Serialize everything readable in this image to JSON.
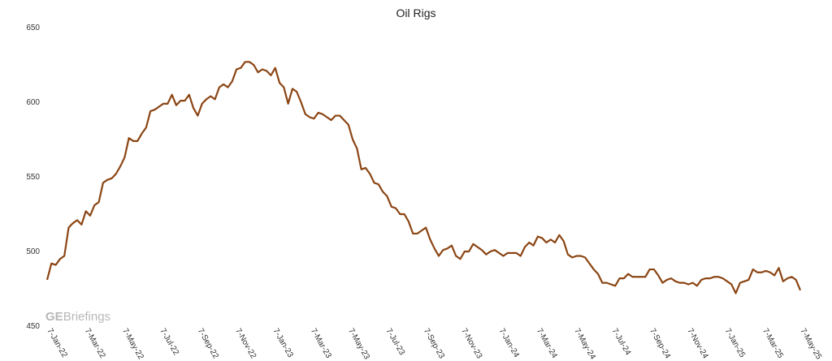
{
  "chart_data": {
    "type": "line",
    "title": "Oil Rigs",
    "xlabel": "",
    "ylabel": "",
    "ylim": [
      450,
      650
    ],
    "yticks": [
      450,
      500,
      550,
      600,
      650
    ],
    "grid": false,
    "legend": "none",
    "x_tick_labels": [
      "7-Jan-22",
      "7-Mar-22",
      "7-May-22",
      "7-Jul-22",
      "7-Sep-22",
      "7-Nov-22",
      "7-Jan-23",
      "7-Mar-23",
      "7-May-23",
      "7-Jul-23",
      "7-Sep-23",
      "7-Nov-23",
      "7-Jan-24",
      "7-Mar-24",
      "7-May-24",
      "7-Jul-24",
      "7-Sep-24",
      "7-Nov-24",
      "7-Jan-25",
      "7-Mar-25",
      "7-May-25"
    ],
    "series": [
      {
        "color": "#8B4513",
        "values": [
          481,
          492,
          491,
          495,
          497,
          516,
          519,
          521,
          518,
          527,
          524,
          531,
          533,
          546,
          548,
          549,
          552,
          557,
          563,
          576,
          574,
          574,
          579,
          583,
          594,
          595,
          597,
          599,
          599,
          605,
          598,
          601,
          601,
          605,
          596,
          591,
          599,
          602,
          604,
          602,
          610,
          612,
          610,
          614,
          622,
          623,
          627,
          627,
          625,
          620,
          622,
          621,
          618,
          623,
          613,
          610,
          599,
          609,
          607,
          600,
          592,
          590,
          589,
          593,
          592,
          590,
          588,
          591,
          591,
          588,
          585,
          575,
          569,
          555,
          556,
          552,
          546,
          545,
          540,
          537,
          530,
          529,
          525,
          525,
          520,
          512,
          512,
          514,
          516,
          508,
          502,
          497,
          501,
          502,
          504,
          497,
          495,
          500,
          500,
          505,
          503,
          501,
          498,
          500,
          501,
          499,
          497,
          499,
          499,
          499,
          497,
          503,
          506,
          504,
          510,
          509,
          506,
          508,
          506,
          511,
          507,
          498,
          496,
          497,
          497,
          496,
          492,
          488,
          485,
          479,
          479,
          478,
          477,
          482,
          482,
          485,
          483,
          483,
          483,
          483,
          488,
          488,
          484,
          479,
          481,
          482,
          480,
          479,
          479,
          478,
          479,
          477,
          481,
          482,
          482,
          483,
          483,
          482,
          480,
          478,
          472,
          479,
          480,
          481,
          488,
          486,
          486,
          487,
          486,
          484,
          489,
          480,
          482,
          483,
          481,
          474
        ]
      }
    ]
  },
  "watermark": {
    "bold": "GE",
    "rest": "Briefings"
  }
}
